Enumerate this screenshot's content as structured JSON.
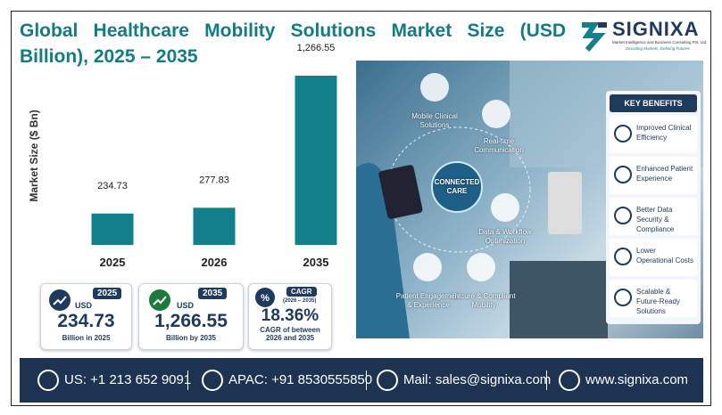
{
  "header": {
    "title": "Global Healthcare Mobility Solutions Market Size (USD Billion), 2025 – 2035",
    "logo": "SIGNIXA",
    "logo_tagline": "Market Intelligence and Business Consulting Pvt. Ltd.",
    "logo_slogan": "Decoding Markets, Defining Futures"
  },
  "chart_data": {
    "type": "bar",
    "y_label": "Market Size ($ Bn)",
    "categories": [
      "2025",
      "2026",
      "2035"
    ],
    "values": [
      234.73,
      277.83,
      1266.55
    ],
    "value_labels": [
      "234.73",
      "277.83",
      "1,266.55"
    ],
    "color": "#11808a"
  },
  "cards": [
    {
      "badge": "2025",
      "unit": "USD",
      "value": "234.73",
      "caption": "Billion in 2025"
    },
    {
      "badge": "2035",
      "unit": "USD",
      "value": "1,266.55",
      "caption": "Billion by 2035"
    },
    {
      "badge": "CAGR",
      "badge_sub": "(2026 – 2035)",
      "value": "18.36%",
      "caption": "CAGR of between 2026 and 2035"
    }
  ],
  "illustration": {
    "hub": "CONNECTED CARE",
    "nodes": [
      "Mobile Clinical Solutions",
      "Real-time Communication",
      "Data & Workflow Optimization",
      "Secure & Compliant Mobility",
      "Patient Engagement & Experience"
    ]
  },
  "benefits": {
    "title": "KEY BENEFITS",
    "items": [
      "Improved Clinical Efficiency",
      "Enhanced Patient Experience",
      "Better Data Security & Compliance",
      "Lower Operational Costs",
      "Scalable & Future-Ready Solutions"
    ]
  },
  "footer": {
    "contacts": [
      "US: +1 213 652 9091",
      "APAC: +91 8530555850",
      "Mail: sales@signixa.com",
      "www.signixa.com"
    ]
  }
}
